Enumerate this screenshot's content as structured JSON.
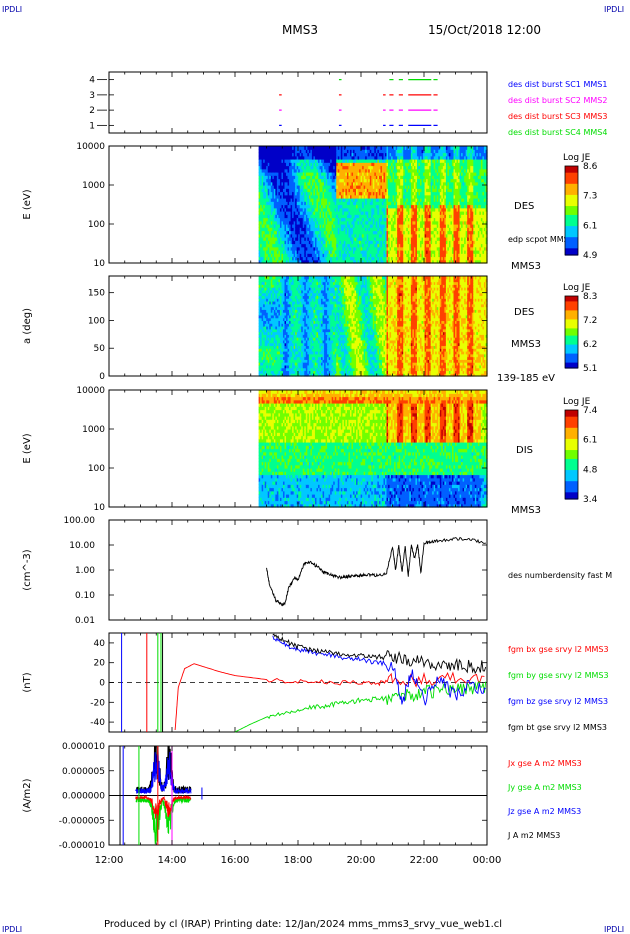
{
  "header": {
    "corner_tl": "IPDLI",
    "corner_tr": "IPDLI",
    "corner_bl": "IPDLI",
    "corner_br": "IPDLI",
    "mission": "MMS3",
    "date": "15/Oct/2018 12:00"
  },
  "footer": {
    "produced": "Produced by cl (IRAP)   Printing date: 12/Jan/2024   mms_mms3_srvy_vue_web1.cl"
  },
  "colors": {
    "blue": "#0000ff",
    "magenta": "#ff00ff",
    "red": "#ff0000",
    "green": "#00dd00",
    "black": "#000000",
    "colorbar": [
      "#0000c8",
      "#0060ff",
      "#00c8ff",
      "#00ff90",
      "#70ff00",
      "#e8ff00",
      "#ffb000",
      "#ff4000",
      "#c00000"
    ]
  },
  "chart_data": [
    {
      "id": "burst",
      "type": "scatter",
      "yticks": [
        "1",
        "2",
        "3",
        "4"
      ],
      "ylim": [
        0.5,
        4.5
      ],
      "series": [
        {
          "name": "des dist burst SC1 MMS1",
          "color": "#0000ff",
          "segments": [
            [
              17.4,
              17.45
            ],
            [
              19.3,
              19.35
            ],
            [
              20.7,
              20.75
            ],
            [
              20.9,
              21.0
            ],
            [
              21.2,
              21.3
            ],
            [
              21.5,
              22.2
            ],
            [
              22.3,
              22.4
            ]
          ]
        },
        {
          "name": "des dist burst SC2 MMS2",
          "color": "#ff00ff",
          "segments": [
            [
              17.4,
              17.45
            ],
            [
              19.3,
              19.35
            ],
            [
              20.7,
              20.75
            ],
            [
              20.9,
              21.0
            ],
            [
              21.2,
              21.3
            ],
            [
              21.5,
              22.2
            ],
            [
              22.3,
              22.4
            ]
          ]
        },
        {
          "name": "des dist burst SC3 MMS3",
          "color": "#ff0000",
          "segments": [
            [
              17.4,
              17.45
            ],
            [
              19.3,
              19.35
            ],
            [
              20.7,
              20.75
            ],
            [
              20.9,
              21.0
            ],
            [
              21.2,
              21.3
            ],
            [
              21.5,
              22.2
            ],
            [
              22.3,
              22.4
            ]
          ]
        },
        {
          "name": "des dist burst SC4 MMS4",
          "color": "#00dd00",
          "segments": [
            [
              19.3,
              19.35
            ],
            [
              20.9,
              21.0
            ],
            [
              21.2,
              21.3
            ],
            [
              21.5,
              22.2
            ],
            [
              22.3,
              22.4
            ]
          ]
        }
      ]
    },
    {
      "id": "des_energy",
      "type": "heatmap",
      "ylabel": "E (eV)",
      "yticks": [
        "10",
        "100",
        "1000",
        "10000"
      ],
      "side_label": "DES",
      "side_label2": "edp scpot MMS3",
      "mission_label": "MMS3",
      "colorbar": {
        "title": "Log JE",
        "ticks": [
          "8.6",
          "7.3",
          "6.1",
          "4.9"
        ]
      },
      "data_start_hour": 16.75,
      "data_end_hour": 24.0
    },
    {
      "id": "des_pitch",
      "type": "heatmap",
      "ylabel": "a (deg)",
      "yticks": [
        "0",
        "50",
        "100",
        "150"
      ],
      "side_label": "DES",
      "mission_label": "MMS3",
      "energy_range": "139-185 eV",
      "colorbar": {
        "title": "Log JE",
        "ticks": [
          "8.3",
          "7.2",
          "6.2",
          "5.1"
        ]
      },
      "data_start_hour": 16.75,
      "data_end_hour": 24.0
    },
    {
      "id": "dis_energy",
      "type": "heatmap",
      "ylabel": "E (eV)",
      "yticks": [
        "10",
        "100",
        "1000",
        "10000"
      ],
      "side_label": "DIS",
      "mission_label": "MMS3",
      "colorbar": {
        "title": "Log JE",
        "ticks": [
          "7.4",
          "6.1",
          "4.8",
          "3.4"
        ]
      },
      "data_start_hour": 16.75,
      "data_end_hour": 24.0
    },
    {
      "id": "density",
      "type": "line",
      "ylabel": "(cm^-3)",
      "yticks": [
        "0.01",
        "0.10",
        "1.00",
        "10.00",
        "100.00"
      ],
      "scale": "log",
      "ylim": [
        0.01,
        100
      ],
      "series": [
        {
          "name": "des numberdensity fast M",
          "color": "#000000",
          "x": [
            17.0,
            17.1,
            17.3,
            17.5,
            17.6,
            17.7,
            17.9,
            18.0,
            18.2,
            18.4,
            18.6,
            18.8,
            19.0,
            19.2,
            19.4,
            19.6,
            19.8,
            20.0,
            20.2,
            20.5,
            20.8,
            21.0,
            21.1,
            21.2,
            21.3,
            21.4,
            21.5,
            21.6,
            21.7,
            21.8,
            21.9,
            22.0,
            22.2,
            22.5,
            23.0,
            23.5,
            24.0
          ],
          "y": [
            1.2,
            0.25,
            0.06,
            0.04,
            0.05,
            0.2,
            0.5,
            0.4,
            1.8,
            2.0,
            1.4,
            0.8,
            0.7,
            0.55,
            0.5,
            0.55,
            0.6,
            0.6,
            0.65,
            0.6,
            0.7,
            8.0,
            1.0,
            10.0,
            0.8,
            9.0,
            0.6,
            10.0,
            3.0,
            10.0,
            0.8,
            12.0,
            13.0,
            15.0,
            18.0,
            16.0,
            12.0
          ]
        }
      ]
    },
    {
      "id": "bfield",
      "type": "line",
      "ylabel": "(nT)",
      "yticks": [
        "-40",
        "-20",
        "0",
        "20",
        "40"
      ],
      "ylim": [
        -50,
        50
      ],
      "series": [
        {
          "name": "fgm bx gse srvy l2 MMS3",
          "color": "#ff0000",
          "x": [
            14.1,
            14.2,
            14.4,
            14.7,
            15.0,
            15.5,
            16.0,
            17.0,
            18.0,
            19.0,
            20.0,
            20.5,
            21.0,
            22.0,
            23.0,
            24.0
          ],
          "y": [
            -48,
            -5,
            14,
            19,
            16,
            11,
            7,
            3,
            1,
            0,
            0,
            -1,
            2,
            3,
            5,
            4
          ]
        },
        {
          "name": "fgm by gse srvy l2 MMS3",
          "color": "#00dd00",
          "x": [
            16.0,
            16.5,
            17.0,
            17.5,
            18.0,
            18.5,
            19.0,
            19.5,
            20.0,
            20.5,
            21.0,
            21.5,
            22.0,
            22.5,
            23.0,
            23.5,
            24.0
          ],
          "y": [
            -50,
            -42,
            -35,
            -31,
            -27,
            -25,
            -23,
            -20,
            -18,
            -17,
            -15,
            -13,
            -10,
            -8,
            -6,
            -5,
            -4
          ]
        },
        {
          "name": "fgm bz gse srvy l2 MMS3",
          "color": "#0000ff",
          "x": [
            17.2,
            17.6,
            18.0,
            18.5,
            19.0,
            19.5,
            20.0,
            20.5,
            21.0,
            21.3,
            21.6,
            22.0,
            22.5,
            23.0,
            23.5,
            24.0
          ],
          "y": [
            45,
            38,
            33,
            30,
            28,
            25,
            23,
            20,
            18,
            -20,
            10,
            -18,
            5,
            -15,
            0,
            -10
          ]
        },
        {
          "name": "fgm bt gse srvy l2 MMS3",
          "color": "#000000",
          "x": [
            17.2,
            17.6,
            18.0,
            18.5,
            19.0,
            19.5,
            20.0,
            20.5,
            21.0,
            21.5,
            22.0,
            22.5,
            23.0,
            23.5,
            24.0
          ],
          "y": [
            48,
            42,
            36,
            33,
            30,
            28,
            27,
            26,
            25,
            22,
            20,
            18,
            17,
            16,
            16
          ]
        }
      ]
    },
    {
      "id": "current",
      "type": "line",
      "ylabel": "(A/m2)",
      "yticks": [
        "-0.000010",
        "-0.000005",
        "0.000000",
        "0.000005",
        "0.000010"
      ],
      "ylim": [
        -1e-05,
        1e-05
      ],
      "xticks": [
        "12:00",
        "14:00",
        "16:00",
        "18:00",
        "20:00",
        "22:00",
        "00:00"
      ],
      "series": [
        {
          "name": "Jx gse A m2 MMS3",
          "color": "#ff0000"
        },
        {
          "name": "Jy gse A m2 MMS3",
          "color": "#00dd00"
        },
        {
          "name": "Jz gse A m2 MMS3",
          "color": "#0000ff"
        },
        {
          "name": "J A m2 MMS3",
          "color": "#000000"
        }
      ]
    }
  ]
}
